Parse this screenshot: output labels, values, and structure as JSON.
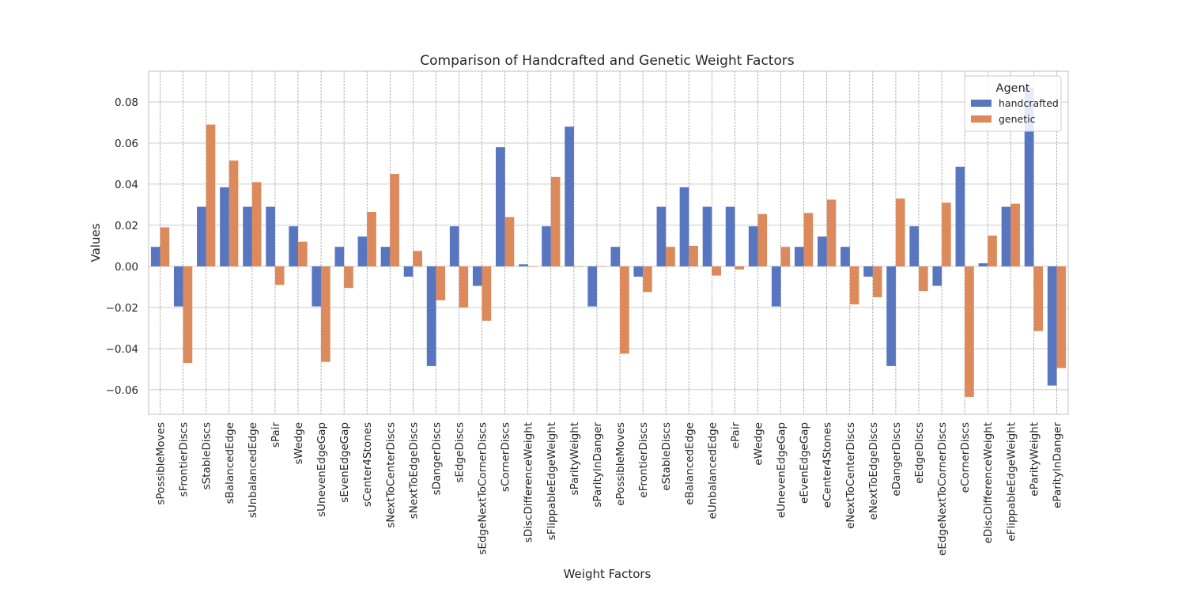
{
  "chart_data": {
    "type": "bar",
    "title": "Comparison of Handcrafted and Genetic Weight Factors",
    "xlabel": "Weight Factors",
    "ylabel": "Values",
    "ylim": [
      -0.072,
      0.095
    ],
    "yticks": [
      -0.06,
      -0.04,
      -0.02,
      0.0,
      0.02,
      0.04,
      0.06,
      0.08
    ],
    "ytick_labels": [
      "−0.06",
      "−0.04",
      "−0.02",
      "0.00",
      "0.02",
      "0.04",
      "0.06",
      "0.08"
    ],
    "grid": true,
    "legend": {
      "title": "Agent",
      "placement": "top-right"
    },
    "categories": [
      "sPossibleMoves",
      "sFrontierDiscs",
      "sStableDiscs",
      "sBalancedEdge",
      "sUnbalancedEdge",
      "sPair",
      "sWedge",
      "sUnevenEdgeGap",
      "sEvenEdgeGap",
      "sCenter4Stones",
      "sNextToCenterDiscs",
      "sNextToEdgeDiscs",
      "sDangerDiscs",
      "sEdgeDiscs",
      "sEdgeNextToCornerDiscs",
      "sCornerDiscs",
      "sDiscDifferenceWeight",
      "sFlippableEdgeWeight",
      "sParityWeight",
      "sParityInDanger",
      "ePossibleMoves",
      "eFrontierDiscs",
      "eStableDiscs",
      "eBalancedEdge",
      "eUnbalancedEdge",
      "ePair",
      "eWedge",
      "eUnevenEdgeGap",
      "eEvenEdgeGap",
      "eCenter4Stones",
      "eNextToCenterDiscs",
      "eNextToEdgeDiscs",
      "eDangerDiscs",
      "eEdgeDiscs",
      "eEdgeNextToCornerDiscs",
      "eCornerDiscs",
      "eDiscDifferenceWeight",
      "eFlippableEdgeWeight",
      "eParityWeight",
      "eParityInDanger"
    ],
    "series": [
      {
        "name": "handcrafted",
        "color": "#5875c0",
        "values": [
          0.0095,
          -0.0195,
          0.029,
          0.0385,
          0.029,
          0.029,
          0.0195,
          -0.0195,
          0.0095,
          0.0145,
          0.0095,
          -0.005,
          -0.0485,
          0.0195,
          -0.0095,
          0.058,
          0.001,
          0.0195,
          0.068,
          -0.0195,
          0.0095,
          -0.005,
          0.029,
          0.0385,
          0.029,
          0.029,
          0.0195,
          -0.0195,
          0.0095,
          0.0145,
          0.0095,
          -0.005,
          -0.0485,
          0.0195,
          -0.0095,
          0.0485,
          0.0015,
          0.029,
          0.087,
          -0.058
        ]
      },
      {
        "name": "genetic",
        "color": "#dc8a5b",
        "values": [
          0.019,
          -0.047,
          0.069,
          0.0515,
          0.041,
          -0.009,
          0.012,
          -0.0465,
          -0.0105,
          0.0265,
          0.045,
          0.0075,
          -0.0165,
          -0.02,
          -0.0265,
          0.024,
          0.0,
          0.0435,
          0.0,
          0.0,
          -0.0425,
          -0.0125,
          0.0095,
          0.01,
          -0.0045,
          -0.0015,
          0.0255,
          0.0095,
          0.026,
          0.0325,
          -0.0185,
          -0.015,
          0.033,
          -0.012,
          0.031,
          -0.0635,
          0.015,
          0.0305,
          -0.0315,
          -0.0495
        ]
      }
    ]
  }
}
